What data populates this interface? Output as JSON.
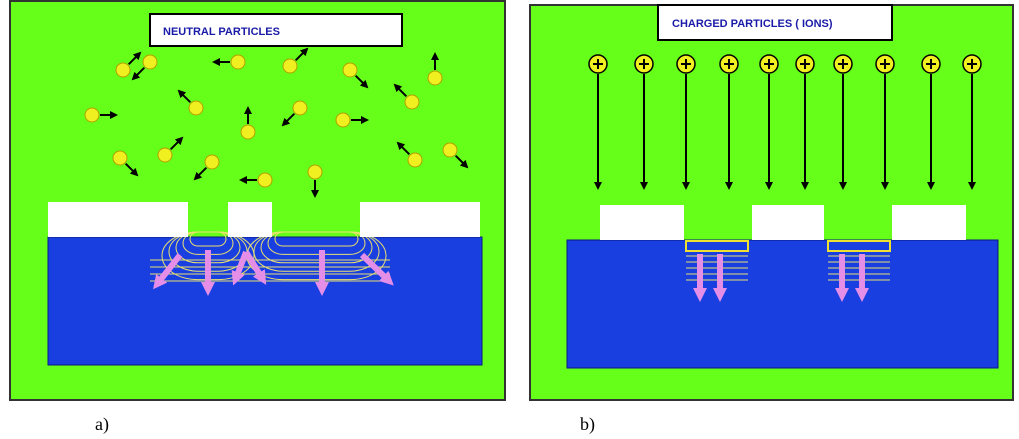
{
  "panels": [
    {
      "title": "NEUTRAL PARTICLES",
      "caption": "a)"
    },
    {
      "title": "CHARGED PARTICLES ( IONS)",
      "caption": "b)"
    }
  ]
}
